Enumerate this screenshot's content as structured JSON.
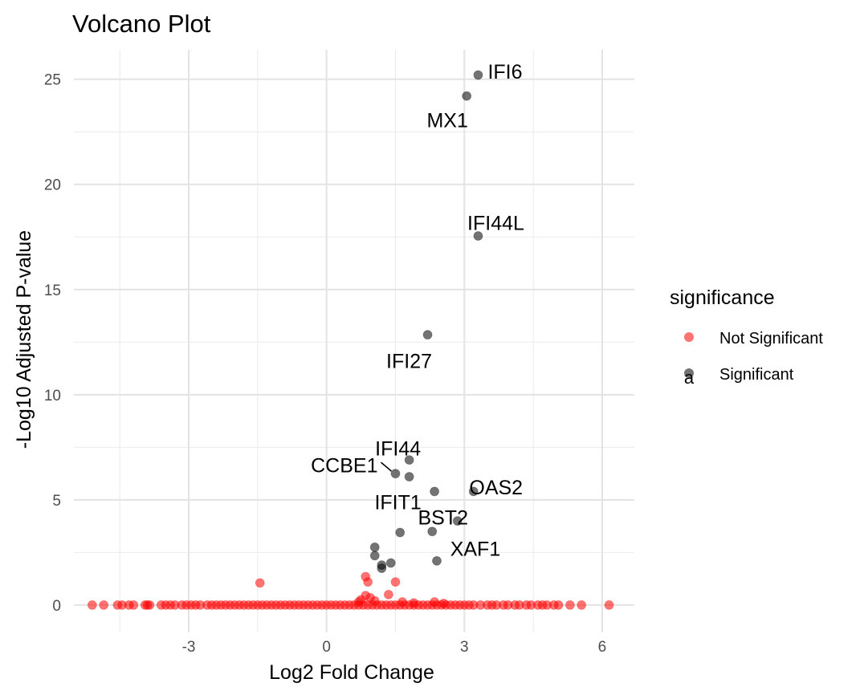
{
  "chart_data": {
    "type": "scatter",
    "title": "Volcano Plot",
    "xlabel": "Log2 Fold Change",
    "ylabel": "-Log10 Adjusted P-value",
    "xlim": [
      -5.5,
      6.7
    ],
    "ylim": [
      -1.3,
      26.4
    ],
    "x_ticks": [
      -3,
      0,
      3,
      6
    ],
    "y_ticks": [
      0,
      5,
      10,
      15,
      20,
      25
    ],
    "grid": true,
    "legend": {
      "title": "significance",
      "position": "right",
      "entries": [
        {
          "label": "Not Significant",
          "color": "#ff0000"
        },
        {
          "label": "Significant",
          "color": "#000000",
          "key_text": "a"
        }
      ]
    },
    "series": [
      {
        "name": "Not Significant",
        "color": "#ff0000",
        "points": [
          [
            -5.1,
            0
          ],
          [
            -4.85,
            0
          ],
          [
            -4.55,
            0
          ],
          [
            -4.45,
            0
          ],
          [
            -4.3,
            0
          ],
          [
            -4.2,
            0
          ],
          [
            -3.95,
            0
          ],
          [
            -3.9,
            0
          ],
          [
            -3.85,
            0
          ],
          [
            -3.6,
            0
          ],
          [
            -3.5,
            0
          ],
          [
            -3.4,
            0
          ],
          [
            -3.3,
            0
          ],
          [
            -3.15,
            0
          ],
          [
            -3.05,
            0
          ],
          [
            -2.95,
            0
          ],
          [
            -2.85,
            0
          ],
          [
            -2.75,
            0
          ],
          [
            -2.6,
            0
          ],
          [
            -2.5,
            0
          ],
          [
            -2.4,
            0
          ],
          [
            -2.3,
            0
          ],
          [
            -2.2,
            0
          ],
          [
            -2.1,
            0
          ],
          [
            -2.0,
            0
          ],
          [
            -1.9,
            0
          ],
          [
            -1.8,
            0
          ],
          [
            -1.7,
            0
          ],
          [
            -1.6,
            0
          ],
          [
            -1.5,
            0
          ],
          [
            -1.4,
            0
          ],
          [
            -1.3,
            0
          ],
          [
            -1.2,
            0
          ],
          [
            -1.1,
            0
          ],
          [
            -1.0,
            0
          ],
          [
            -0.9,
            0
          ],
          [
            -0.8,
            0
          ],
          [
            -0.7,
            0
          ],
          [
            -0.6,
            0
          ],
          [
            -0.5,
            0
          ],
          [
            -0.4,
            0
          ],
          [
            -0.3,
            0
          ],
          [
            -0.2,
            0
          ],
          [
            -0.1,
            0
          ],
          [
            0.0,
            0
          ],
          [
            0.1,
            0
          ],
          [
            0.2,
            0
          ],
          [
            0.3,
            0
          ],
          [
            0.4,
            0
          ],
          [
            0.5,
            0
          ],
          [
            0.6,
            0
          ],
          [
            0.7,
            0
          ],
          [
            0.8,
            0
          ],
          [
            0.9,
            0
          ],
          [
            1.0,
            0
          ],
          [
            1.1,
            0
          ],
          [
            1.2,
            0
          ],
          [
            1.3,
            0
          ],
          [
            1.4,
            0
          ],
          [
            1.5,
            0
          ],
          [
            1.6,
            0
          ],
          [
            1.7,
            0
          ],
          [
            1.8,
            0
          ],
          [
            1.9,
            0
          ],
          [
            2.0,
            0
          ],
          [
            2.1,
            0
          ],
          [
            2.2,
            0
          ],
          [
            2.3,
            0
          ],
          [
            2.4,
            0
          ],
          [
            2.5,
            0
          ],
          [
            2.6,
            0
          ],
          [
            2.7,
            0
          ],
          [
            2.8,
            0
          ],
          [
            2.9,
            0
          ],
          [
            3.0,
            0
          ],
          [
            3.1,
            0
          ],
          [
            3.2,
            0
          ],
          [
            3.35,
            0
          ],
          [
            3.5,
            0
          ],
          [
            3.6,
            0
          ],
          [
            3.7,
            0
          ],
          [
            3.85,
            0
          ],
          [
            3.95,
            0
          ],
          [
            4.1,
            0
          ],
          [
            4.2,
            0
          ],
          [
            4.35,
            0
          ],
          [
            4.45,
            0
          ],
          [
            4.6,
            0
          ],
          [
            4.7,
            0
          ],
          [
            4.8,
            0
          ],
          [
            4.95,
            0
          ],
          [
            5.05,
            0
          ],
          [
            5.3,
            0
          ],
          [
            5.55,
            0
          ],
          [
            6.15,
            0
          ],
          [
            -1.45,
            1.05
          ],
          [
            0.85,
            1.35
          ],
          [
            0.9,
            1.1
          ],
          [
            1.5,
            1.1
          ],
          [
            1.35,
            0.5
          ],
          [
            0.85,
            0.45
          ],
          [
            0.95,
            0.35
          ],
          [
            0.75,
            0.25
          ],
          [
            0.7,
            0.15
          ],
          [
            1.05,
            0.2
          ],
          [
            1.65,
            0.15
          ],
          [
            2.35,
            0.15
          ],
          [
            1.9,
            0.1
          ],
          [
            2.55,
            0.08
          ]
        ]
      },
      {
        "name": "Significant",
        "color": "#000000",
        "points": [
          [
            3.3,
            25.2
          ],
          [
            3.05,
            24.2
          ],
          [
            3.3,
            17.55
          ],
          [
            2.2,
            12.85
          ],
          [
            1.8,
            6.9
          ],
          [
            1.5,
            6.25
          ],
          [
            1.8,
            6.1
          ],
          [
            2.35,
            5.4
          ],
          [
            3.2,
            5.4
          ],
          [
            2.85,
            4.0
          ],
          [
            1.6,
            3.45
          ],
          [
            2.3,
            3.5
          ],
          [
            1.05,
            2.75
          ],
          [
            1.05,
            2.35
          ],
          [
            1.4,
            2.0
          ],
          [
            2.4,
            2.1
          ],
          [
            1.2,
            1.9
          ],
          [
            1.2,
            1.75
          ]
        ]
      }
    ],
    "labels": [
      {
        "text": "IFI6",
        "x": 3.3,
        "y": 25.2
      },
      {
        "text": "MX1",
        "x": 3.05,
        "y": 24.2
      },
      {
        "text": "IFI44L",
        "x": 3.3,
        "y": 17.55
      },
      {
        "text": "IFI27",
        "x": 2.2,
        "y": 12.85
      },
      {
        "text": "IFI44",
        "x": 1.8,
        "y": 6.9
      },
      {
        "text": "CCBE1",
        "x": 1.5,
        "y": 6.25
      },
      {
        "text": "IFIT1",
        "x": 1.8,
        "y": 6.1
      },
      {
        "text": "OAS2",
        "x": 3.2,
        "y": 5.4
      },
      {
        "text": "BST2",
        "x": 2.85,
        "y": 4.0
      },
      {
        "text": "XAF1",
        "x": 2.4,
        "y": 2.1
      }
    ]
  }
}
